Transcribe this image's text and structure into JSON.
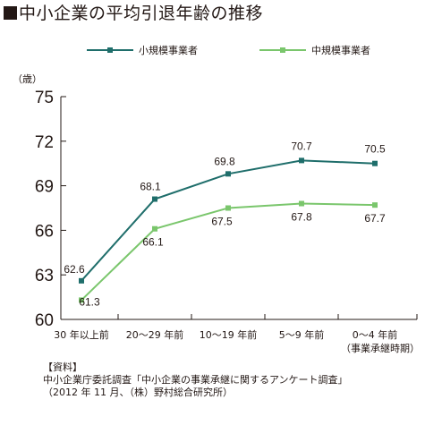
{
  "page": {
    "title": "中小企業の平均引退年齢の推移"
  },
  "chart_data": {
    "type": "line",
    "title": "中小企業の平均引退年齢の推移",
    "ylabel": "（歳）",
    "xlabel": "",
    "categories": [
      "30 年以上前",
      "20〜29 年前",
      "10〜19 年前",
      "5〜9 年前",
      "0〜4 年前"
    ],
    "x_note": "（事業承継時期）",
    "ylim": [
      60,
      75
    ],
    "yticks": [
      60,
      63,
      66,
      69,
      72,
      75
    ],
    "grid": false,
    "legend_position": "top",
    "series": [
      {
        "name": "小規模事業者",
        "values": [
          62.6,
          68.1,
          69.8,
          70.7,
          70.5
        ],
        "labels": [
          "62.6",
          "68.1",
          "69.8",
          "70.7",
          "70.5"
        ],
        "color": "#1f6e6b"
      },
      {
        "name": "中規模事業者",
        "values": [
          61.3,
          66.1,
          67.5,
          67.8,
          67.7
        ],
        "labels": [
          "61.3",
          "66.1",
          "67.5",
          "67.8",
          "67.7"
        ],
        "color": "#7ac66c"
      }
    ]
  },
  "source": {
    "label": "【資料】",
    "line1": "中小企業庁委託調査「中小企業の事業承継に関するアンケート調査」",
    "line2": "（2012 年 11 月、（株）野村総合研究所）"
  }
}
